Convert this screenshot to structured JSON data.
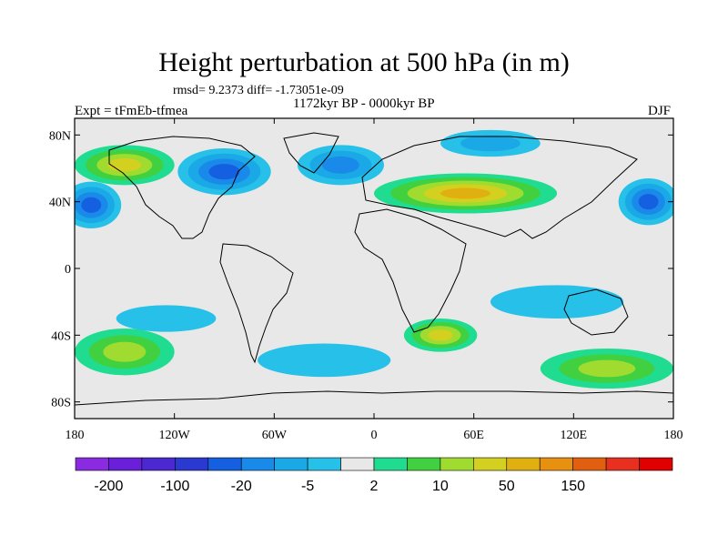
{
  "header": {
    "title": "Height perturbation at 500 hPa (in m)",
    "stats": "rmsd= 9.2373 diff= -1.73051e-09",
    "period": "1172kyr BP - 0000kyr BP",
    "experiment": "Expt = tFmEb-tfmea",
    "season": "DJF"
  },
  "chart_data": {
    "type": "heatmap",
    "title": "Height perturbation at 500 hPa (in m)",
    "xlabel": "",
    "ylabel": "",
    "xlim": [
      -180,
      180
    ],
    "ylim": [
      -90,
      90
    ],
    "x_ticks": [
      {
        "value": -180,
        "label": "180"
      },
      {
        "value": -120,
        "label": "120W"
      },
      {
        "value": -60,
        "label": "60W"
      },
      {
        "value": 0,
        "label": "0"
      },
      {
        "value": 60,
        "label": "60E"
      },
      {
        "value": 120,
        "label": "120E"
      },
      {
        "value": 180,
        "label": "180"
      }
    ],
    "y_ticks": [
      {
        "value": 80,
        "label": "80N"
      },
      {
        "value": 40,
        "label": "40N"
      },
      {
        "value": 0,
        "label": "0"
      },
      {
        "value": -40,
        "label": "40S"
      },
      {
        "value": -80,
        "label": "80S"
      }
    ],
    "colorbar": {
      "colors": [
        "#8a2be2",
        "#6a1fd8",
        "#4b28d0",
        "#2a3ad0",
        "#1560e0",
        "#1a8aea",
        "#1aa8e6",
        "#26c0e8",
        "#e8e8e8",
        "#20dc90",
        "#40d040",
        "#a0dc30",
        "#d4d020",
        "#e0b010",
        "#e89010",
        "#e06010",
        "#e83020",
        "#e00000"
      ],
      "labels": [
        {
          "after_bin": 1,
          "text": "-200"
        },
        {
          "after_bin": 3,
          "text": "-100"
        },
        {
          "after_bin": 5,
          "text": "-20"
        },
        {
          "after_bin": 7,
          "text": "-5"
        },
        {
          "after_bin": 9,
          "text": "2"
        },
        {
          "after_bin": 11,
          "text": "10"
        },
        {
          "after_bin": 13,
          "text": "50"
        },
        {
          "after_bin": 15,
          "text": "150"
        }
      ]
    },
    "anomaly_regions": [
      {
        "name": "north-america-low",
        "lon": -90,
        "lat": 58,
        "rlon": 28,
        "rlat": 14,
        "level": 4
      },
      {
        "name": "north-atlantic-low",
        "lon": -20,
        "lat": 62,
        "rlon": 26,
        "rlat": 12,
        "level": 5
      },
      {
        "name": "north-pacific-low",
        "lon": -170,
        "lat": 38,
        "rlon": 18,
        "rlat": 14,
        "level": 4
      },
      {
        "name": "west-pacific-low",
        "lon": 165,
        "lat": 40,
        "rlon": 18,
        "rlat": 14,
        "level": 4
      },
      {
        "name": "eurasia-high",
        "lon": 55,
        "lat": 45,
        "rlon": 55,
        "rlat": 12,
        "level": 13
      },
      {
        "name": "alaska-high",
        "lon": -150,
        "lat": 62,
        "rlon": 30,
        "rlat": 12,
        "level": 12
      },
      {
        "name": "siberia-low",
        "lon": 70,
        "lat": 75,
        "rlon": 30,
        "rlat": 8,
        "level": 6
      },
      {
        "name": "south-indian-high",
        "lon": 40,
        "lat": -40,
        "rlon": 22,
        "rlat": 10,
        "level": 12
      },
      {
        "name": "south-pacific-high",
        "lon": -150,
        "lat": -50,
        "rlon": 30,
        "rlat": 14,
        "level": 11
      },
      {
        "name": "south-pacific-low",
        "lon": -125,
        "lat": -30,
        "rlon": 30,
        "rlat": 8,
        "level": 7
      },
      {
        "name": "south-atlantic-low",
        "lon": -30,
        "lat": -55,
        "rlon": 40,
        "rlat": 10,
        "level": 7
      },
      {
        "name": "southern-ocean-high",
        "lon": 140,
        "lat": -60,
        "rlon": 40,
        "rlat": 12,
        "level": 11
      },
      {
        "name": "australia-low",
        "lon": 110,
        "lat": -20,
        "rlon": 40,
        "rlat": 10,
        "level": 7
      }
    ]
  }
}
